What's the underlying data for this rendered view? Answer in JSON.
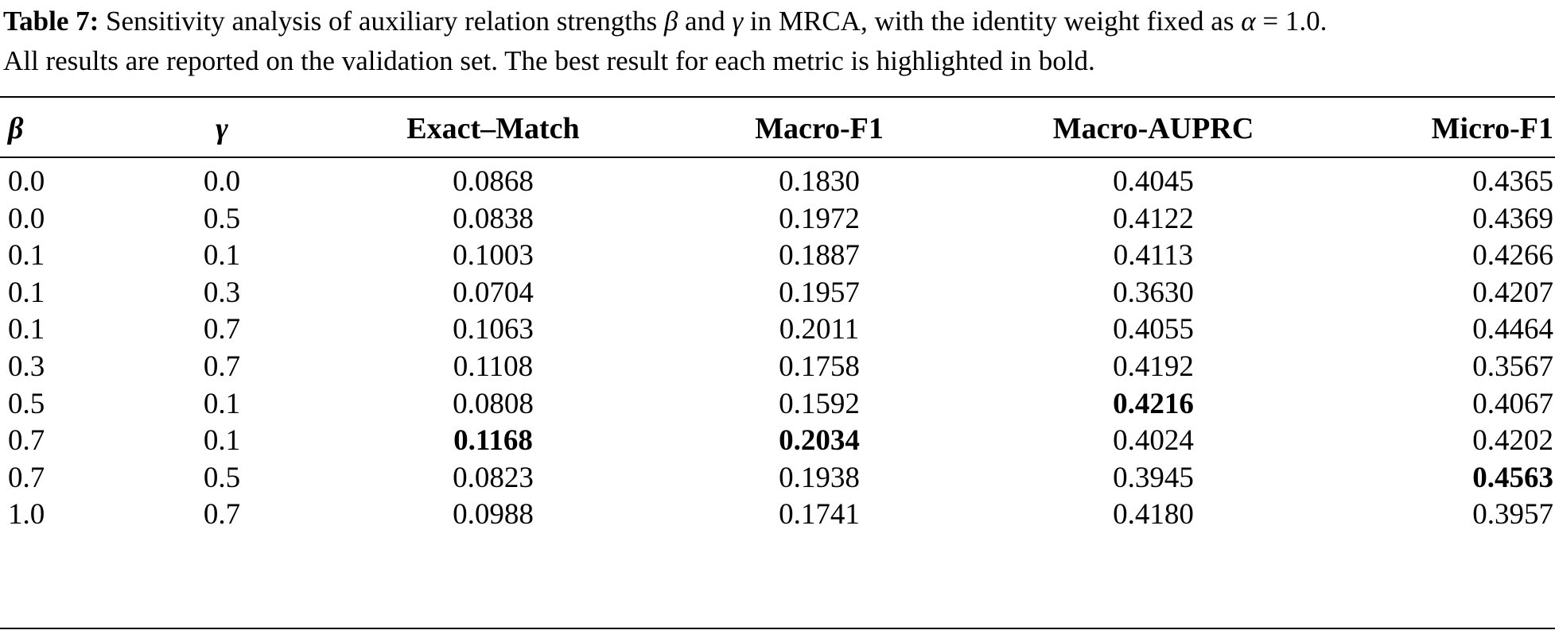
{
  "caption": {
    "label": "Table 7:",
    "line1_a": " Sensitivity analysis of auxiliary relation strengths ",
    "sym_beta": "β",
    "line1_b": " and ",
    "sym_gamma": "γ",
    "line1_c": " in MRCA, with the identity weight fixed as ",
    "sym_alpha": "α",
    "line1_d": " = 1.0.",
    "line2": "All results are reported on the validation set. The best result for each metric is highlighted in bold."
  },
  "table": {
    "headers": {
      "beta": "β",
      "gamma": "γ",
      "exact_match": "Exact–Match",
      "macro_f1": "Macro-F1",
      "macro_auprc": "Macro-AUPRC",
      "micro_f1": "Micro-F1"
    },
    "rows": [
      {
        "beta": "0.0",
        "gamma": "0.0",
        "exact_match": "0.0868",
        "macro_f1": "0.1830",
        "macro_auprc": "0.4045",
        "micro_f1": "0.4365"
      },
      {
        "beta": "0.0",
        "gamma": "0.5",
        "exact_match": "0.0838",
        "macro_f1": "0.1972",
        "macro_auprc": "0.4122",
        "micro_f1": "0.4369"
      },
      {
        "beta": "0.1",
        "gamma": "0.1",
        "exact_match": "0.1003",
        "macro_f1": "0.1887",
        "macro_auprc": "0.4113",
        "micro_f1": "0.4266"
      },
      {
        "beta": "0.1",
        "gamma": "0.3",
        "exact_match": "0.0704",
        "macro_f1": "0.1957",
        "macro_auprc": "0.3630",
        "micro_f1": "0.4207"
      },
      {
        "beta": "0.1",
        "gamma": "0.7",
        "exact_match": "0.1063",
        "macro_f1": "0.2011",
        "macro_auprc": "0.4055",
        "micro_f1": "0.4464"
      },
      {
        "beta": "0.3",
        "gamma": "0.7",
        "exact_match": "0.1108",
        "macro_f1": "0.1758",
        "macro_auprc": "0.4192",
        "micro_f1": "0.3567"
      },
      {
        "beta": "0.5",
        "gamma": "0.1",
        "exact_match": "0.0808",
        "macro_f1": "0.1592",
        "macro_auprc": "0.4216",
        "micro_f1": "0.4067"
      },
      {
        "beta": "0.7",
        "gamma": "0.1",
        "exact_match": "0.1168",
        "macro_f1": "0.2034",
        "macro_auprc": "0.4024",
        "micro_f1": "0.4202"
      },
      {
        "beta": "0.7",
        "gamma": "0.5",
        "exact_match": "0.0823",
        "macro_f1": "0.1938",
        "macro_auprc": "0.3945",
        "micro_f1": "0.4563"
      },
      {
        "beta": "1.0",
        "gamma": "0.7",
        "exact_match": "0.0988",
        "macro_f1": "0.1741",
        "macro_auprc": "0.4180",
        "micro_f1": "0.3957"
      }
    ],
    "best": {
      "exact_match": "0.1168",
      "macro_f1": "0.2034",
      "macro_auprc": "0.4216",
      "micro_f1": "0.4563"
    }
  }
}
